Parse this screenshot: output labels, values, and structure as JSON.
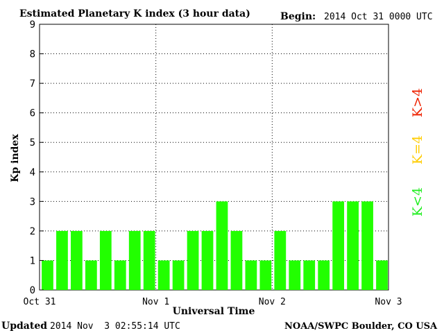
{
  "header": {
    "title": "Estimated Planetary K index (3 hour data)",
    "begin_label": "Begin:",
    "begin_value": "2014 Oct 31 0000 UTC"
  },
  "footer": {
    "updated_label": "Updated",
    "updated_value": "2014 Nov  3 02:55:14 UTC",
    "credit": "NOAA/SWPC Boulder, CO USA"
  },
  "legend": {
    "low": "K<4",
    "eq": "K=4",
    "high": "K>4",
    "colors": {
      "low": "#22ee22",
      "eq": "#ffcc00",
      "high": "#ee2200"
    }
  },
  "chart_data": {
    "type": "bar",
    "xlabel": "Universal Time",
    "ylabel": "Kp index",
    "ylim": [
      0,
      9
    ],
    "yticks": [
      "0",
      "1",
      "2",
      "3",
      "4",
      "5",
      "6",
      "7",
      "8",
      "9"
    ],
    "xticks": [
      "Oct 31",
      "Nov 1",
      "Nov 2",
      "Nov 3"
    ],
    "values": [
      1,
      2,
      2,
      1,
      2,
      1,
      2,
      2,
      1,
      1,
      2,
      2,
      3,
      2,
      1,
      1,
      2,
      1,
      1,
      1,
      3,
      3,
      3,
      1
    ],
    "bar_color": "#22ff00",
    "grid": true
  }
}
